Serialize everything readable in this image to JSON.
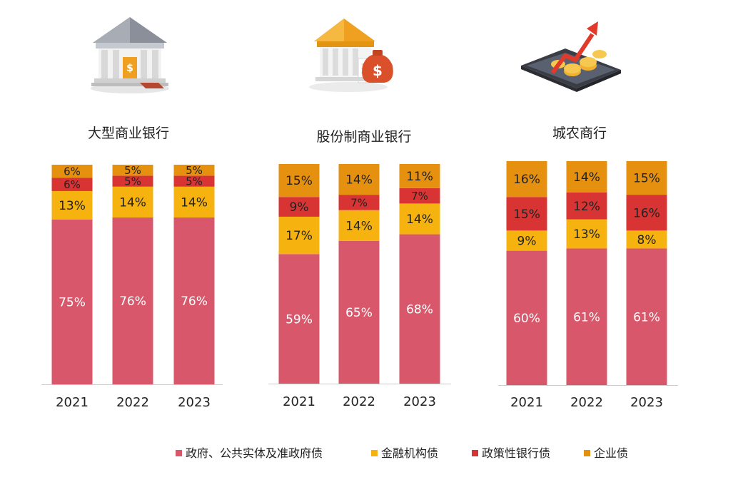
{
  "colors": {
    "government": "#d9576b",
    "financial": "#f6b30f",
    "policy_bank": "#d93434",
    "corporate": "#e6900f",
    "axis": "#cccccc",
    "text": "#222222",
    "label_on_dark": "#ffffff"
  },
  "chart_data": [
    {
      "type": "bar",
      "stacked": true,
      "title": "大型商业银行",
      "categories": [
        "2021",
        "2022",
        "2023"
      ],
      "series": [
        {
          "name": "政府、公共实体及准政府债",
          "values": [
            75,
            76,
            76
          ]
        },
        {
          "name": "金融机构债",
          "values": [
            13,
            14,
            14
          ]
        },
        {
          "name": "政策性银行债",
          "values": [
            6,
            5,
            5
          ]
        },
        {
          "name": "企业债",
          "values": [
            6,
            5,
            5
          ]
        }
      ],
      "ylim": [
        0,
        100
      ],
      "unit": "%",
      "icon": "bank-building-icon"
    },
    {
      "type": "bar",
      "stacked": true,
      "title": "股份制商业银行",
      "categories": [
        "2021",
        "2022",
        "2023"
      ],
      "series": [
        {
          "name": "政府、公共实体及准政府债",
          "values": [
            59,
            65,
            68
          ]
        },
        {
          "name": "金融机构债",
          "values": [
            17,
            14,
            14
          ]
        },
        {
          "name": "政策性银行债",
          "values": [
            9,
            7,
            7
          ]
        },
        {
          "name": "企业债",
          "values": [
            15,
            14,
            11
          ]
        }
      ],
      "ylim": [
        0,
        100
      ],
      "unit": "%",
      "icon": "bank-money-bag-icon"
    },
    {
      "type": "bar",
      "stacked": true,
      "title": "城农商行",
      "categories": [
        "2021",
        "2022",
        "2023"
      ],
      "series": [
        {
          "name": "政府、公共实体及准政府债",
          "values": [
            60,
            61,
            61
          ]
        },
        {
          "name": "金融机构债",
          "values": [
            9,
            13,
            8
          ]
        },
        {
          "name": "政策性银行债",
          "values": [
            15,
            12,
            16
          ]
        },
        {
          "name": "企业债",
          "values": [
            16,
            14,
            15
          ]
        }
      ],
      "ylim": [
        0,
        100
      ],
      "unit": "%",
      "icon": "tablet-coins-growth-icon"
    }
  ],
  "legend": {
    "placement": "bottom",
    "items": [
      {
        "label": "政府、公共实体及准政府债",
        "color": "#d9576b"
      },
      {
        "label": "金融机构债",
        "color": "#f6b30f"
      },
      {
        "label": "政策性银行债",
        "color": "#d93434"
      },
      {
        "label": "企业债",
        "color": "#e6900f"
      }
    ]
  }
}
